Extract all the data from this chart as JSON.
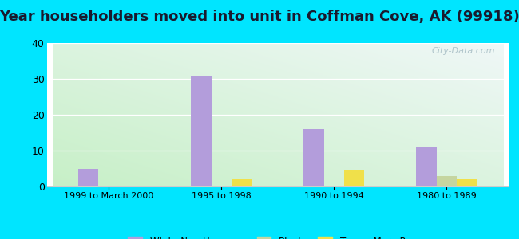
{
  "title": "Year householders moved into unit in Coffman Cove, AK (99918)",
  "categories": [
    "1999 to March 2000",
    "1995 to 1998",
    "1990 to 1994",
    "1980 to 1989"
  ],
  "series": {
    "White Non-Hispanic": [
      5,
      31,
      16,
      11
    ],
    "Black": [
      0,
      0,
      0,
      3
    ],
    "Two or More Races": [
      0,
      2,
      4.5,
      2
    ]
  },
  "colors": {
    "White Non-Hispanic": "#b39ddb",
    "Black": "#c5d5a0",
    "Two or More Races": "#f0e04a"
  },
  "ylim": [
    0,
    40
  ],
  "yticks": [
    0,
    10,
    20,
    30,
    40
  ],
  "background_color": "#00e5ff",
  "title_fontsize": 13,
  "bar_width": 0.18,
  "watermark": "City-Data.com"
}
